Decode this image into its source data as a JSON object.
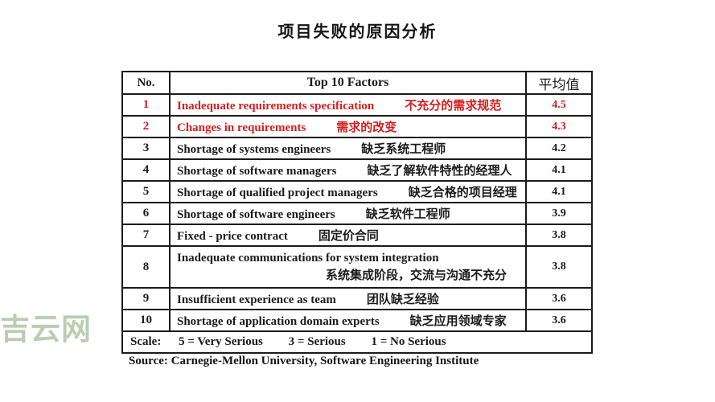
{
  "title": "项目失败的原因分析",
  "watermark": "吉云网",
  "source": "Source: Carnegie-Mellon University, Software Engineering Institute",
  "colors": {
    "highlight_red": "#d42020",
    "text_black": "#1b1b1b",
    "border": "#1b1b1b",
    "watermark_green": "#b9ceb1",
    "background": "#ffffff"
  },
  "table": {
    "headers": {
      "no": "No.",
      "factors": "Top 10 Factors",
      "avg": "平均值"
    },
    "rows": [
      {
        "no": "1",
        "en": "Inadequate requirements specification",
        "zh": "不充分的需求规范",
        "avg": "4.5",
        "highlight": true,
        "twoLine": false
      },
      {
        "no": "2",
        "en": "Changes in requirements",
        "zh": "需求的改变",
        "avg": "4.3",
        "highlight": true,
        "twoLine": false
      },
      {
        "no": "3",
        "en": "Shortage of systems engineers",
        "zh": "缺乏系统工程师",
        "avg": "4.2",
        "highlight": false,
        "twoLine": false
      },
      {
        "no": "4",
        "en": "Shortage of software managers",
        "zh": "缺乏了解软件特性的经理人",
        "avg": "4.1",
        "highlight": false,
        "twoLine": false
      },
      {
        "no": "5",
        "en": "Shortage of qualified project managers",
        "zh": "缺乏合格的项目经理",
        "avg": "4.1",
        "highlight": false,
        "twoLine": false
      },
      {
        "no": "6",
        "en": "Shortage of software engineers",
        "zh": "缺乏软件工程师",
        "avg": "3.9",
        "highlight": false,
        "twoLine": false
      },
      {
        "no": "7",
        "en": "Fixed - price contract",
        "zh": "固定价合同",
        "avg": "3.8",
        "highlight": false,
        "twoLine": false
      },
      {
        "no": "8",
        "en": "Inadequate communications for system integration",
        "zh": "系统集成阶段，交流与沟通不充分",
        "avg": "3.8",
        "highlight": false,
        "twoLine": true
      },
      {
        "no": "9",
        "en": "Insufficient experience as team",
        "zh": "团队缺乏经验",
        "avg": "3.6",
        "highlight": false,
        "twoLine": false
      },
      {
        "no": "10",
        "en": "Shortage of application domain experts",
        "zh": "缺乏应用领域专家",
        "avg": "3.6",
        "highlight": false,
        "twoLine": false
      }
    ],
    "scale": {
      "label": "Scale:",
      "items": [
        "5 = Very Serious",
        "3 = Serious",
        "1 = No Serious"
      ]
    }
  }
}
